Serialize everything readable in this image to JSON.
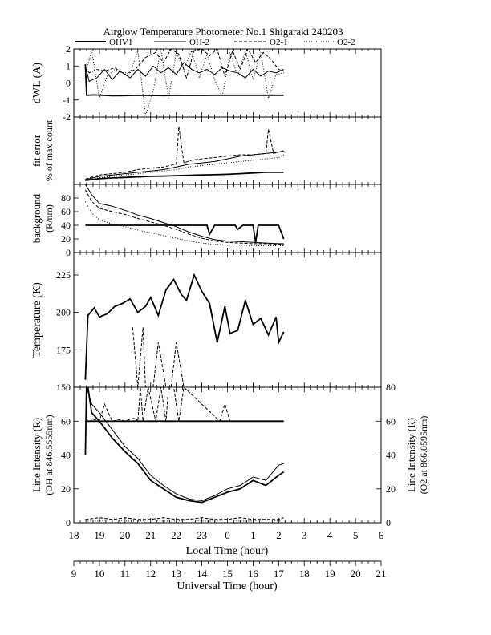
{
  "title": "Airglow Temperature Photometer No.1  Shigaraki  240203",
  "legend": [
    {
      "name": "OHV1",
      "style": "solid-thick"
    },
    {
      "name": "OH-2",
      "style": "solid-thin"
    },
    {
      "name": "O2-1",
      "style": "dashed"
    },
    {
      "name": "O2-2",
      "style": "dotted"
    }
  ],
  "chart_data": [
    {
      "id": "dwl",
      "type": "line",
      "ylabel": "dWL (A)",
      "ylim": [
        -2,
        2
      ],
      "yticks": [
        "-2",
        "-1",
        "0",
        "1",
        "2"
      ],
      "series": [
        {
          "name": "OHV1",
          "style": "solid-thick",
          "x": [
            18.45,
            18.5,
            18.8,
            19.5,
            20,
            20.5,
            21,
            21.5,
            22,
            22.5,
            23,
            23.5,
            24,
            24.5,
            25,
            25.5,
            26,
            26.2
          ],
          "y": [
            1.1,
            -0.72,
            -0.7,
            -0.75,
            -0.74,
            -0.72,
            -0.73,
            -0.74,
            -0.72,
            -0.73,
            -0.73,
            -0.72,
            -0.72,
            -0.72,
            -0.72,
            -0.72,
            -0.72,
            -0.72
          ]
        },
        {
          "name": "OH-2",
          "style": "solid-thin",
          "x": [
            18.45,
            18.6,
            18.9,
            19.2,
            19.5,
            19.8,
            20.2,
            20.5,
            20.8,
            21.1,
            21.4,
            21.7,
            22.0,
            22.3,
            22.6,
            22.9,
            23.2,
            23.5,
            23.8,
            24.1,
            24.4,
            24.7,
            25.0,
            25.3,
            25.6,
            25.9,
            26.2
          ],
          "y": [
            1.0,
            0.1,
            0.3,
            0.8,
            0.2,
            0.7,
            0.3,
            0.8,
            0.4,
            1.0,
            0.6,
            0.9,
            0.5,
            1.2,
            0.8,
            0.6,
            0.8,
            0.5,
            0.9,
            0.7,
            0.6,
            0.3,
            0.8,
            0.4,
            0.7,
            0.6,
            0.8
          ]
        },
        {
          "name": "O2-1",
          "style": "dashed",
          "x": [
            18.45,
            18.6,
            18.9,
            19.2,
            19.6,
            20.0,
            20.4,
            20.8,
            21.2,
            21.5,
            21.8,
            22.1,
            22.4,
            22.7,
            23.0,
            23.3,
            23.6,
            23.9,
            24.2,
            24.5,
            24.8,
            25.1,
            25.4,
            25.7,
            26.0,
            26.2
          ],
          "y": [
            0.9,
            0.6,
            0.8,
            0.7,
            0.9,
            0.5,
            0.8,
            1.5,
            1.8,
            1.2,
            2.0,
            1.7,
            0.3,
            1.9,
            2.0,
            1.6,
            2.0,
            0.4,
            1.9,
            0.8,
            2.0,
            1.2,
            1.8,
            1.4,
            0.8,
            0.7
          ]
        },
        {
          "name": "O2-2",
          "style": "dotted",
          "x": [
            18.45,
            18.7,
            19.0,
            19.3,
            19.6,
            19.9,
            20.2,
            20.5,
            20.8,
            21.1,
            21.4,
            21.7,
            22.0,
            22.3,
            22.6,
            22.9,
            23.2,
            23.5,
            23.8,
            24.1,
            24.4,
            24.7,
            25.0,
            25.3,
            25.6,
            25.9,
            26.2
          ],
          "y": [
            0.5,
            1.9,
            -0.9,
            0.4,
            0.8,
            0.6,
            0.6,
            1.9,
            -1.9,
            -0.5,
            2.0,
            -0.9,
            1.8,
            0.8,
            1.9,
            0.3,
            1.7,
            0.2,
            -0.8,
            1.8,
            0.4,
            1.9,
            0.2,
            1.8,
            -0.9,
            0.5,
            0.6
          ]
        }
      ]
    },
    {
      "id": "fit",
      "type": "line",
      "ylabel": "fit error",
      "ylabel2": "% of max count",
      "ylim": [
        0,
        5
      ],
      "yticks": [],
      "series": [
        {
          "name": "OHV1",
          "style": "solid-thick",
          "x": [
            18.45,
            19,
            19.5,
            20,
            20.5,
            21,
            21.5,
            22,
            22.5,
            23,
            23.5,
            24,
            24.5,
            25,
            25.5,
            26,
            26.2
          ],
          "y": [
            0.3,
            0.42,
            0.48,
            0.52,
            0.56,
            0.6,
            0.62,
            0.65,
            0.68,
            0.7,
            0.72,
            0.75,
            0.8,
            0.85,
            0.9,
            0.9,
            0.9
          ]
        },
        {
          "name": "OH-2",
          "style": "solid-thin",
          "x": [
            18.45,
            19,
            19.5,
            20,
            20.5,
            21,
            21.5,
            22,
            22.5,
            23,
            23.5,
            24,
            24.5,
            25,
            25.5,
            26,
            26.2
          ],
          "y": [
            0.35,
            0.6,
            0.7,
            0.8,
            0.9,
            1.0,
            1.1,
            1.3,
            1.5,
            1.6,
            1.7,
            1.9,
            2.1,
            2.2,
            2.3,
            2.4,
            2.5
          ]
        },
        {
          "name": "O2-1",
          "style": "dashed",
          "x": [
            18.45,
            19,
            19.5,
            20,
            20.5,
            21,
            21.5,
            22,
            22.1,
            22.3,
            22.6,
            23,
            23.5,
            24,
            24.5,
            25,
            25.5,
            25.6,
            25.8,
            26,
            26.2
          ],
          "y": [
            0.4,
            0.7,
            0.8,
            0.9,
            1.1,
            1.2,
            1.3,
            1.5,
            4.3,
            1.6,
            1.8,
            1.9,
            2.0,
            2.1,
            2.2,
            2.2,
            2.3,
            4.1,
            2.3,
            2.4,
            2.5
          ]
        },
        {
          "name": "O2-2",
          "style": "dotted",
          "x": [
            18.45,
            19,
            19.5,
            20,
            20.5,
            21,
            21.5,
            22,
            22.5,
            23,
            23.5,
            24,
            24.5,
            25,
            25.5,
            26,
            26.2
          ],
          "y": [
            0.3,
            0.5,
            0.6,
            0.7,
            0.8,
            0.9,
            1.0,
            1.1,
            1.3,
            1.4,
            1.5,
            1.6,
            1.7,
            1.8,
            1.9,
            2.0,
            2.2
          ]
        }
      ]
    },
    {
      "id": "bg",
      "type": "line",
      "ylabel": "background",
      "ylabel2": "(R/nm)",
      "ylim": [
        0,
        100
      ],
      "yticks": [
        "0",
        "20",
        "40",
        "60",
        "80"
      ],
      "series": [
        {
          "name": "OHV1",
          "style": "solid-thick",
          "x": [
            18.45,
            19,
            20,
            21,
            22,
            23.2,
            23.3,
            23.5,
            24,
            24.3,
            24.4,
            24.6,
            25,
            25.1,
            25.2,
            25.6,
            26,
            26.2
          ],
          "y": [
            40,
            40,
            40,
            40,
            40,
            40,
            27,
            40,
            40,
            40,
            34,
            40,
            40,
            15,
            40,
            40,
            40,
            20
          ]
        },
        {
          "name": "OH-2",
          "style": "solid-thin",
          "x": [
            18.45,
            18.7,
            19,
            19.5,
            20,
            20.5,
            21,
            21.5,
            22,
            22.5,
            23,
            23.5,
            24,
            24.5,
            25,
            25.5,
            26,
            26.2
          ],
          "y": [
            100,
            85,
            72,
            68,
            62,
            55,
            50,
            44,
            38,
            30,
            24,
            19,
            17,
            16,
            15,
            14,
            13,
            13
          ]
        },
        {
          "name": "O2-1",
          "style": "dashed",
          "x": [
            18.45,
            18.7,
            19,
            19.5,
            20,
            20.5,
            21,
            21.5,
            22,
            22.5,
            23,
            23.5,
            24,
            24.5,
            25,
            25.5,
            26,
            26.2
          ],
          "y": [
            92,
            75,
            65,
            60,
            56,
            50,
            45,
            40,
            34,
            27,
            21,
            17,
            15,
            14,
            13,
            13,
            12,
            12
          ]
        },
        {
          "name": "O2-2",
          "style": "dotted",
          "x": [
            18.45,
            18.7,
            19,
            19.5,
            20,
            20.5,
            21,
            21.5,
            22,
            22.5,
            23,
            23.5,
            24,
            24.5,
            25,
            25.5,
            26,
            26.2
          ],
          "y": [
            75,
            58,
            48,
            42,
            38,
            33,
            29,
            25,
            21,
            17,
            14,
            12,
            11,
            11,
            10,
            10,
            10,
            10
          ]
        }
      ]
    },
    {
      "id": "temp",
      "type": "line",
      "ylabel": "Temperature (K)",
      "ylim": [
        150,
        240
      ],
      "yticks": [
        "150",
        "175",
        "200",
        "225"
      ],
      "series": [
        {
          "name": "OHV1",
          "style": "solid-thick",
          "x": [
            18.45,
            18.55,
            18.8,
            19.0,
            19.3,
            19.6,
            19.9,
            20.2,
            20.5,
            20.8,
            21.0,
            21.3,
            21.6,
            21.9,
            22.2,
            22.4,
            22.7,
            23.0,
            23.3,
            23.6,
            23.9,
            24.1,
            24.4,
            24.7,
            25.0,
            25.3,
            25.6,
            25.9,
            26.0,
            26.2
          ],
          "y": [
            155,
            198,
            203,
            197,
            199,
            204,
            206,
            209,
            200,
            204,
            210,
            198,
            215,
            222,
            212,
            208,
            225,
            214,
            206,
            180,
            204,
            186,
            188,
            208,
            192,
            196,
            185,
            197,
            180,
            187
          ]
        },
        {
          "name": "O2-1",
          "style": "dashed",
          "x": [
            20.3,
            20.5,
            20.7,
            20.8,
            21.1,
            21.3,
            21.6,
            21.8,
            22.0,
            22.3,
            22.6,
            22.7
          ],
          "y": [
            190,
            150,
            190,
            150,
            150,
            180,
            150,
            150,
            180,
            150,
            150,
            150
          ]
        }
      ]
    },
    {
      "id": "int",
      "type": "line",
      "ylabel": "Line Intensity (R)",
      "ylabel2": "(OH at 846.5555nm)",
      "ylabel_right": "Line Intensity (R)",
      "ylabel_right2": "(O2 at 866.0595nm)",
      "ylim": [
        0,
        80
      ],
      "yticks": [
        "0",
        "20",
        "40",
        "60"
      ],
      "yticks_right": [
        "0",
        "20",
        "40",
        "60",
        "80"
      ],
      "series": [
        {
          "name": "OHV1",
          "style": "solid-thick",
          "x": [
            18.45,
            18.5,
            18.7,
            19.0,
            19.5,
            20.0,
            20.5,
            21.0,
            21.5,
            22.0,
            22.5,
            23.0,
            23.5,
            24.0,
            24.5,
            25.0,
            25.5,
            26.0,
            26.2
          ],
          "y": [
            40,
            85,
            65,
            60,
            50,
            42,
            35,
            25,
            20,
            15,
            13,
            12,
            15,
            18,
            20,
            25,
            22,
            28,
            30
          ]
        },
        {
          "name": "OH-2",
          "style": "solid-thin",
          "x": [
            18.45,
            18.5,
            18.7,
            19.0,
            19.5,
            20.0,
            20.5,
            21.0,
            21.5,
            22.0,
            22.5,
            23.0,
            23.5,
            24.0,
            24.5,
            25.0,
            25.5,
            26.0,
            26.2
          ],
          "y": [
            45,
            80,
            70,
            65,
            55,
            45,
            38,
            28,
            22,
            17,
            14,
            13,
            16,
            20,
            22,
            27,
            25,
            34,
            35
          ]
        },
        {
          "name": "O2-1",
          "style": "dashed",
          "x": [
            18.45,
            19,
            19.5,
            20,
            20.5,
            21,
            21.5,
            22,
            22.5,
            23,
            23.5,
            24,
            24.5,
            25,
            25.5,
            26,
            26.2
          ],
          "y": [
            2,
            3,
            2,
            3,
            2,
            2,
            3,
            2,
            2,
            3,
            2,
            2,
            3,
            2,
            2,
            2,
            3
          ]
        },
        {
          "name": "O2-2",
          "style": "dotted",
          "x": [
            18.45,
            19,
            19.5,
            20,
            20.5,
            21,
            21.5,
            22,
            22.5,
            23,
            23.5,
            24,
            24.5,
            25,
            25.5,
            26,
            26.2
          ],
          "y": [
            1,
            1,
            2,
            1,
            1,
            2,
            1,
            1,
            2,
            1,
            1,
            2,
            1,
            1,
            2,
            1,
            1
          ]
        },
        {
          "name": "OHV1",
          "style": "solid-thick",
          "x": [
            18.45,
            26.2
          ],
          "y": [
            60,
            60
          ]
        },
        {
          "name": "O2-1",
          "style": "dashed",
          "x": [
            18.45,
            18.6,
            18.8,
            19.0,
            19.2,
            19.5,
            19.8,
            20.0,
            20.4,
            20.5,
            20.6,
            20.7,
            20.9,
            21.2,
            21.4,
            21.6,
            21.7,
            21.9,
            22.1,
            22.3,
            23.7,
            23.9,
            24.1
          ],
          "y": [
            62,
            60,
            61,
            60,
            70,
            60,
            61,
            60,
            62,
            60,
            80,
            60,
            80,
            60,
            80,
            60,
            80,
            80,
            60,
            80,
            60,
            70,
            60
          ]
        }
      ]
    }
  ],
  "axes": {
    "local_label": "Local Time (hour)",
    "local_ticks": [
      "18",
      "19",
      "20",
      "21",
      "22",
      "23",
      "0",
      "1",
      "2",
      "3",
      "4",
      "5",
      "6"
    ],
    "ut_label": "Universal Time (hour)",
    "ut_ticks": [
      "9",
      "10",
      "11",
      "12",
      "13",
      "14",
      "15",
      "16",
      "17",
      "18",
      "19",
      "20",
      "21"
    ]
  }
}
